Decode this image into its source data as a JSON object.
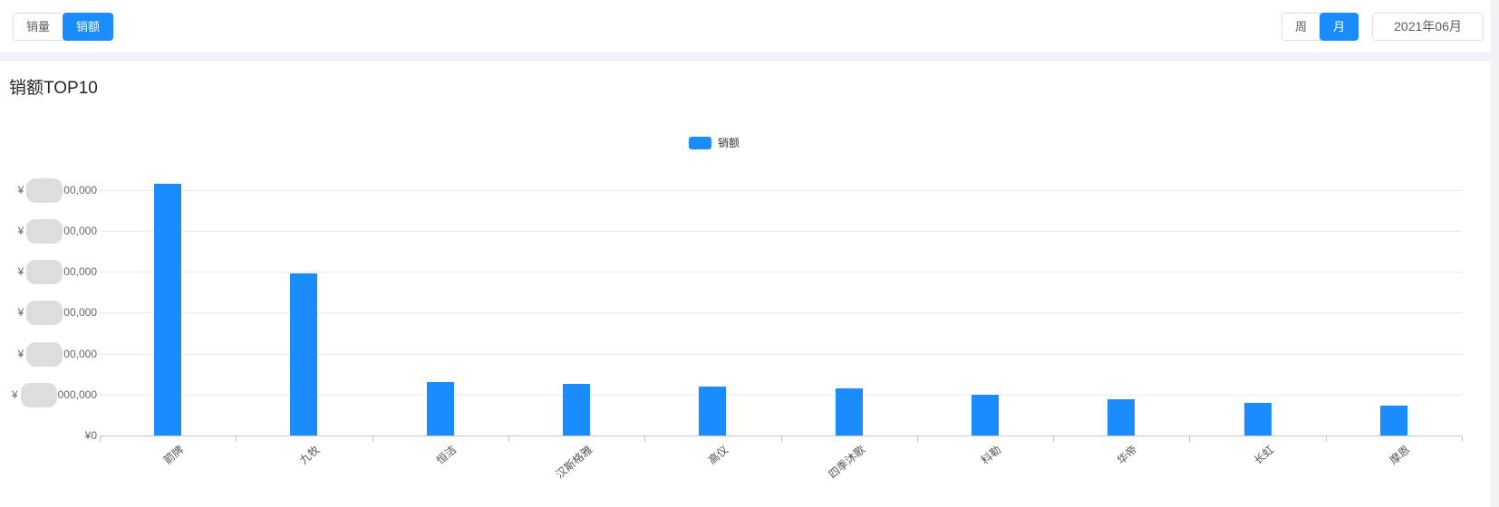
{
  "colors": {
    "accent": "#1b8cfe",
    "bar": "#1b8cfe",
    "separator": "#f0f2f5"
  },
  "toolbar": {
    "metric_toggle": [
      {
        "label": "销量",
        "active": false
      },
      {
        "label": "销额",
        "active": true
      }
    ],
    "period_toggle": [
      {
        "label": "周",
        "active": false
      },
      {
        "label": "月",
        "active": true
      }
    ],
    "date_selector": "2021年06月"
  },
  "page": {
    "title": "销额TOP10"
  },
  "chart_data": {
    "type": "bar",
    "title": "销额TOP10",
    "legend": [
      "销额"
    ],
    "legend_position": "top-center",
    "grid": true,
    "x_label_rotation": -40,
    "categories": [
      "箭牌",
      "九牧",
      "恒洁",
      "汉斯格雅",
      "高仪",
      "四季沐歌",
      "科勒",
      "华帝",
      "长虹",
      "摩恩"
    ],
    "values": [
      6.15,
      3.96,
      1.31,
      1.26,
      1.19,
      1.16,
      1.0,
      0.88,
      0.79,
      0.74
    ],
    "values_unit": "gridline-step units (leading digits of axis amounts are blurred out in source)",
    "ylim": [
      0,
      6.6
    ],
    "y_axis": {
      "currency_prefix": "¥",
      "ticks_top_to_bottom": [
        {
          "text": "00,000",
          "masked": true
        },
        {
          "text": "00,000",
          "masked": true
        },
        {
          "text": "00,000",
          "masked": true
        },
        {
          "text": "00,000",
          "masked": true
        },
        {
          "text": "00,000",
          "masked": true
        },
        {
          "text": "000,000",
          "masked": true
        },
        {
          "text": "0",
          "masked": false
        }
      ]
    }
  }
}
